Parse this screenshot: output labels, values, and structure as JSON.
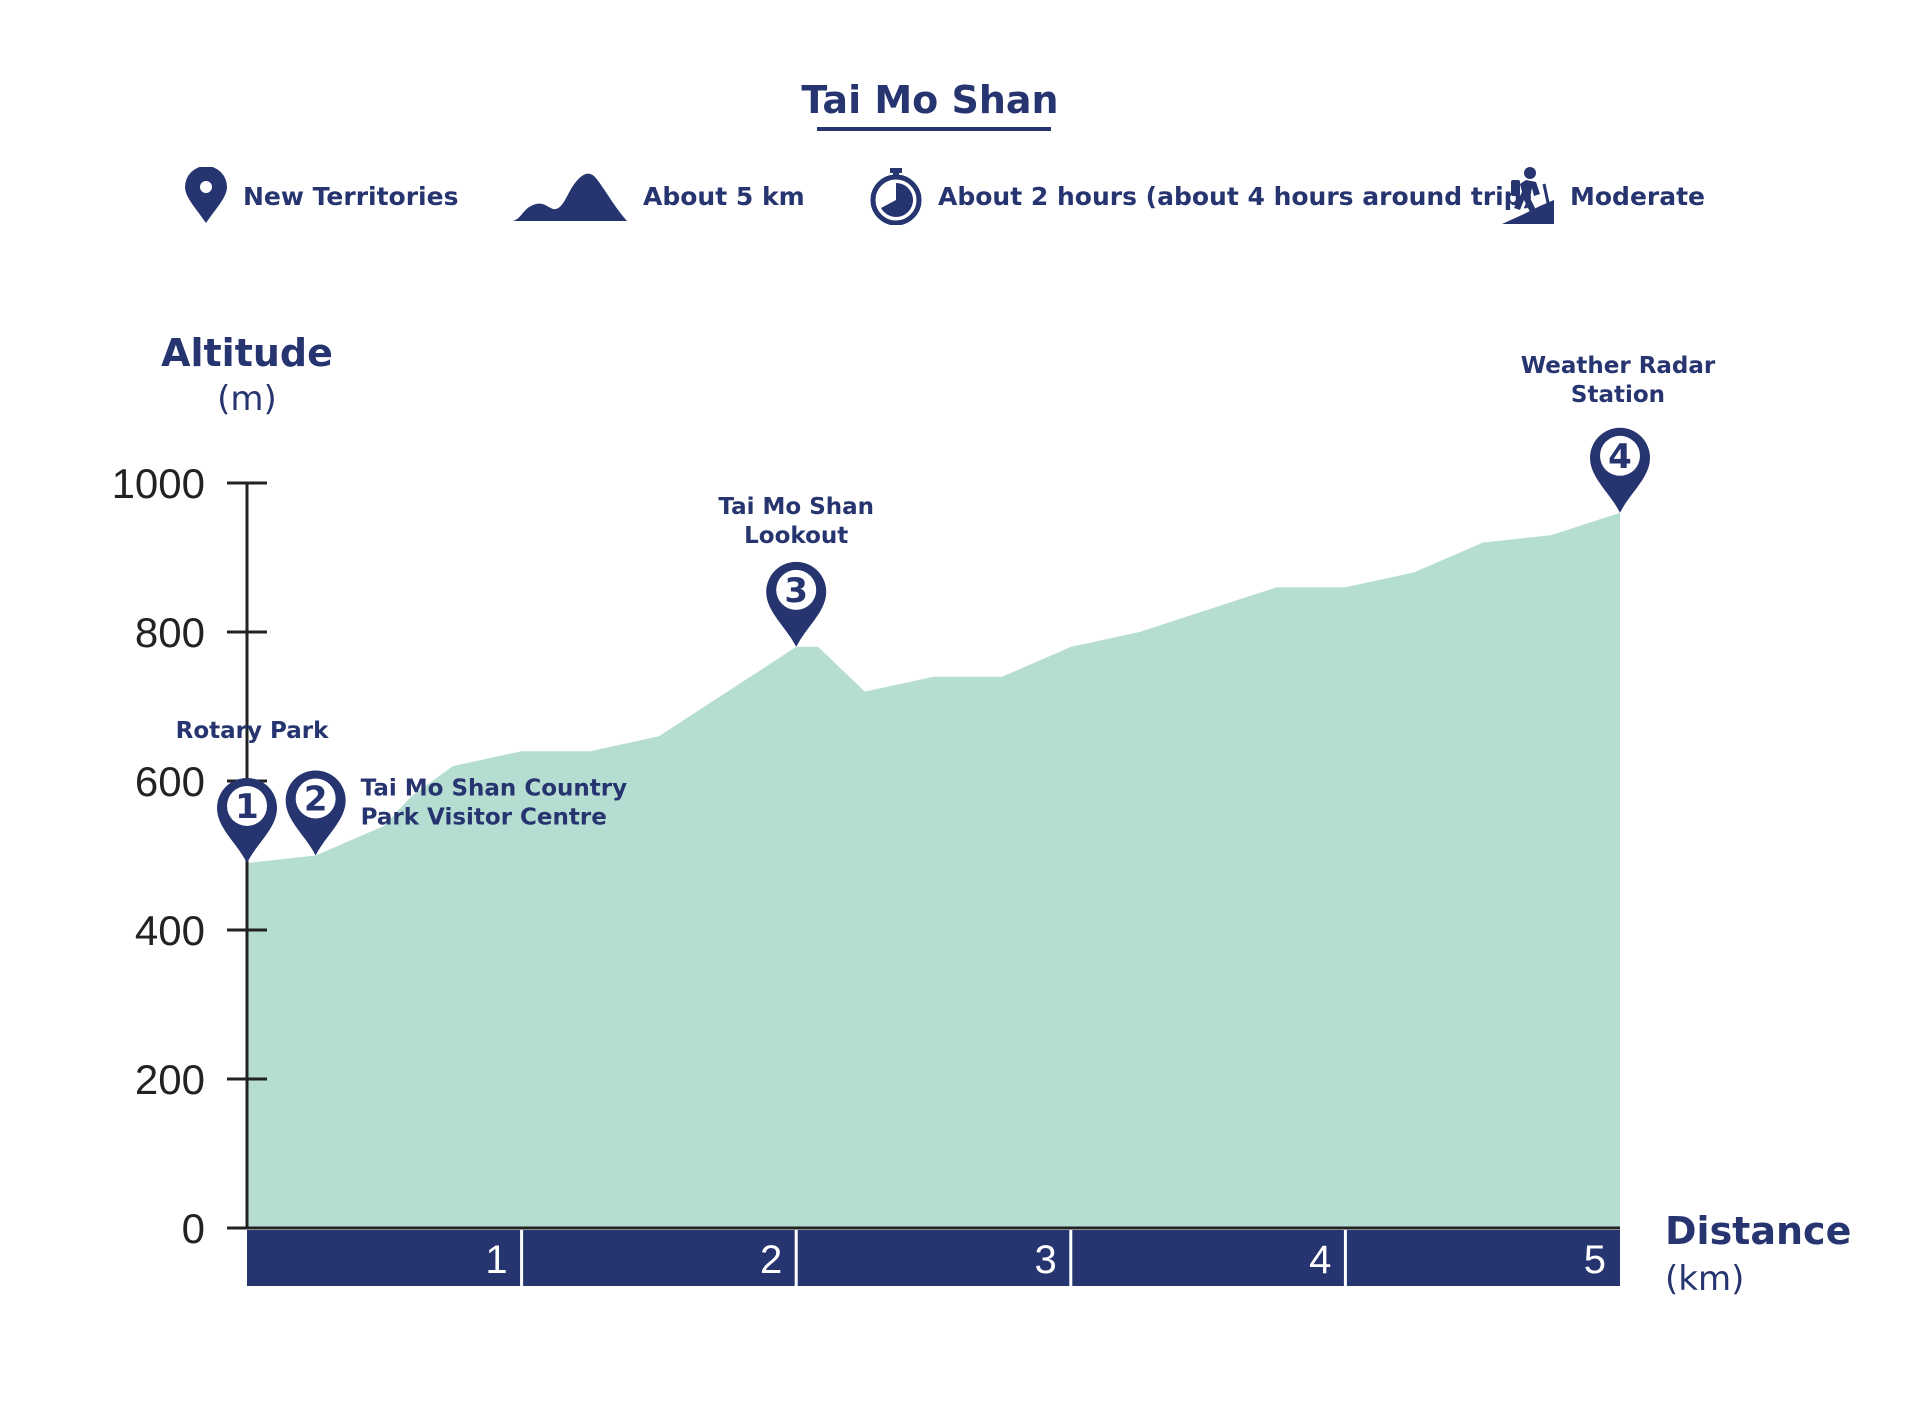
{
  "header": {
    "title": "Tai Mo Shan",
    "info": [
      {
        "icon": "location-pin-icon",
        "label": "New Territories"
      },
      {
        "icon": "mountain-icon",
        "label": "About 5 km"
      },
      {
        "icon": "stopwatch-icon",
        "label": "About 2 hours (about 4 hours around trip)"
      },
      {
        "icon": "hiker-icon",
        "label": "Moderate"
      }
    ]
  },
  "colors": {
    "navy": "#263470",
    "area": "#b5ddd2",
    "text": "#222222"
  },
  "chart_data": {
    "type": "area",
    "title": "Tai Mo Shan",
    "ylabel": "Altitude",
    "yunit": "(m)",
    "xlabel": "Distance",
    "xunit": "(km)",
    "ylim": [
      0,
      1000
    ],
    "xlim": [
      0,
      5
    ],
    "yticks": [
      "0",
      "200",
      "400",
      "600",
      "800",
      "1000"
    ],
    "xticks": [
      "1",
      "2",
      "3",
      "4",
      "5"
    ],
    "grid": false,
    "series": [
      {
        "x": [
          0,
          0.25,
          0.5,
          0.6,
          0.75,
          1.0,
          1.25,
          1.5,
          2.0,
          2.08,
          2.25,
          2.5,
          2.75,
          3.0,
          3.25,
          3.5,
          3.75,
          4.0,
          4.25,
          4.5,
          4.75,
          5.0
        ],
        "y": [
          490,
          500,
          540,
          580,
          620,
          640,
          640,
          660,
          780,
          780,
          720,
          740,
          740,
          780,
          800,
          830,
          860,
          860,
          880,
          920,
          930,
          960
        ]
      }
    ],
    "markers": [
      {
        "num": "1",
        "x": 0,
        "y": 490,
        "label": [
          "Rotary Park"
        ]
      },
      {
        "num": "2",
        "x": 0.25,
        "y": 500,
        "label": [
          "Tai Mo Shan Country",
          "Park Visitor Centre"
        ]
      },
      {
        "num": "3",
        "x": 2.0,
        "y": 780,
        "label": [
          "Tai Mo Shan",
          "Lookout"
        ]
      },
      {
        "num": "4",
        "x": 5.0,
        "y": 960,
        "label": [
          "Weather Radar",
          "Station"
        ]
      }
    ]
  }
}
